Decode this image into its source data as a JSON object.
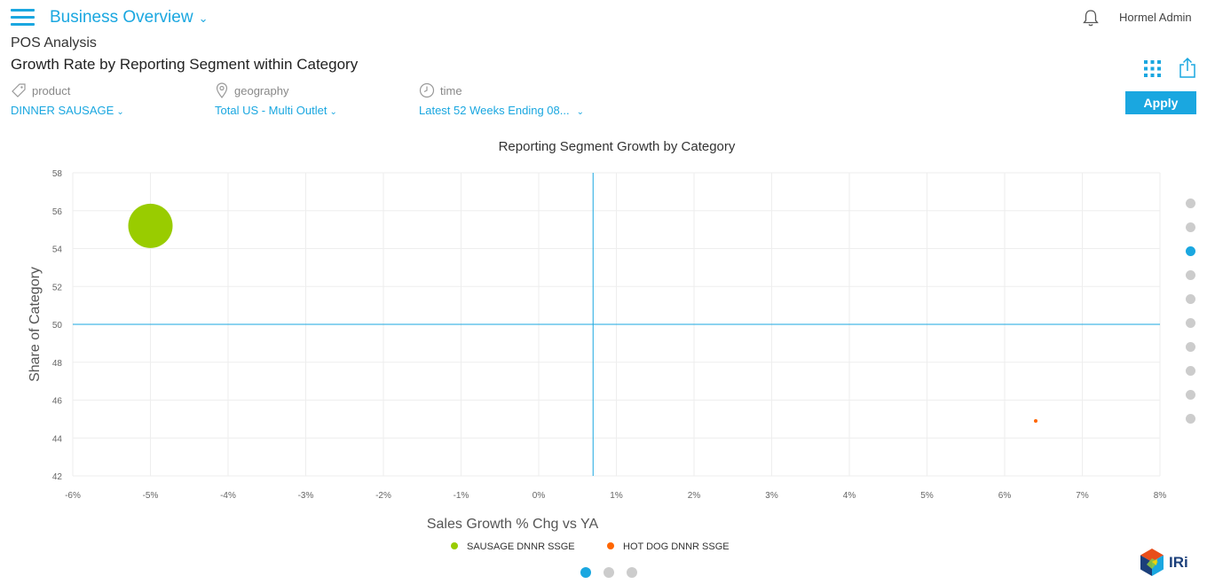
{
  "header": {
    "title": "Business Overview",
    "user": "Hormel Admin"
  },
  "page": {
    "subtitle": "POS Analysis",
    "title": "Growth Rate by Reporting Segment within Category"
  },
  "filters": [
    {
      "label": "product",
      "value": "DINNER SAUSAGE",
      "icon": "tag-icon"
    },
    {
      "label": "geography",
      "value": "Total US - Multi Outlet",
      "icon": "map-pin-icon"
    },
    {
      "label": "time",
      "value": "Latest 52 Weeks Ending 08...",
      "icon": "clock-icon"
    }
  ],
  "apply_label": "Apply",
  "colors": {
    "accent": "#1aa7e0",
    "series_green": "#99cc00",
    "series_orange": "#ff6600"
  },
  "chart_data": {
    "type": "scatter",
    "title": "Reporting Segment Growth by Category",
    "xlabel": "Sales Growth % Chg vs YA",
    "ylabel": "Share of Category",
    "xlim": [
      -6,
      8
    ],
    "ylim": [
      42,
      58
    ],
    "xticks": [
      "-6%",
      "-5%",
      "-4%",
      "-3%",
      "-2%",
      "-1%",
      "0%",
      "1%",
      "2%",
      "3%",
      "4%",
      "5%",
      "6%",
      "7%",
      "8%"
    ],
    "yticks": [
      "42",
      "44",
      "46",
      "48",
      "50",
      "52",
      "54",
      "56",
      "58"
    ],
    "reference_lines": {
      "x": 0.7,
      "y": 50
    },
    "grid": true,
    "legend": "bottom-center",
    "series": [
      {
        "name": "SAUSAGE DNNR SSGE",
        "color": "#99cc00",
        "points": [
          {
            "x": -5.0,
            "y": 55.2,
            "size": "large"
          }
        ]
      },
      {
        "name": "HOT DOG DNNR SSGE",
        "color": "#ff6600",
        "points": [
          {
            "x": 6.4,
            "y": 44.9,
            "size": "small"
          }
        ]
      }
    ]
  },
  "pagination": {
    "side_count": 10,
    "side_active": 3,
    "bottom_count": 3,
    "bottom_active": 1
  },
  "logo_text": "IRi"
}
